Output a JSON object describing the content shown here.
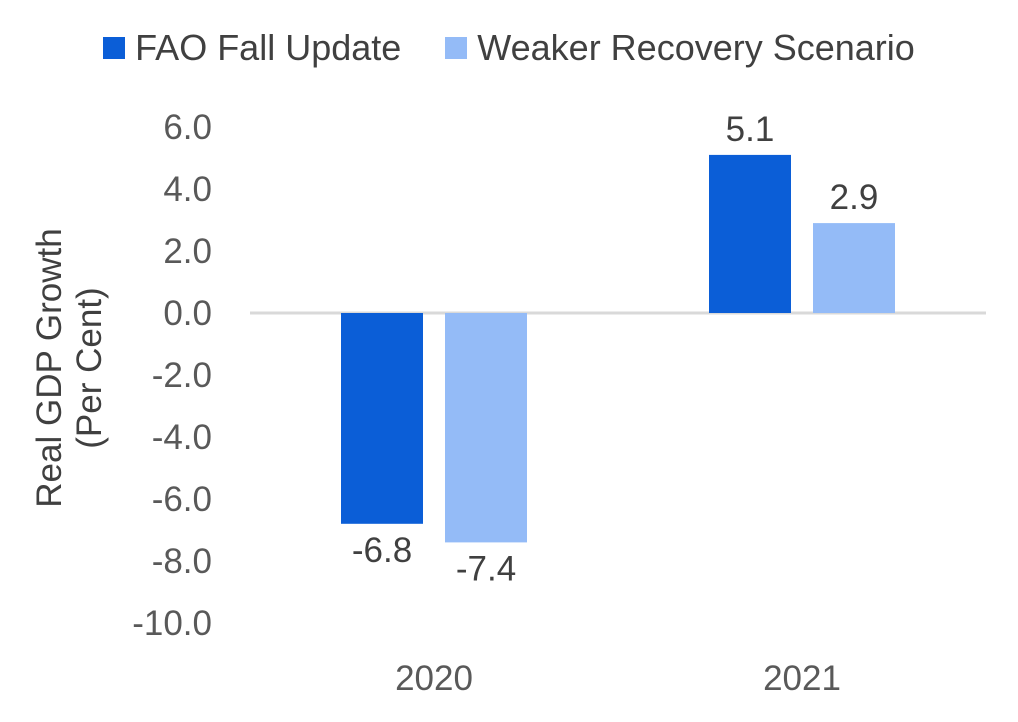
{
  "chart_data": {
    "type": "bar",
    "categories": [
      "2020",
      "2021"
    ],
    "series": [
      {
        "name": "FAO Fall Update",
        "values": [
          -6.8,
          5.1
        ],
        "color": "#0B5ED7"
      },
      {
        "name": "Weaker Recovery Scenario",
        "values": [
          -7.4,
          2.9
        ],
        "color": "#94BBF7"
      }
    ],
    "data_labels": [
      [
        "-6.8",
        "5.1"
      ],
      [
        "-7.4",
        "2.9"
      ]
    ],
    "ylabel_line1": "Real GDP Growth",
    "ylabel_line2": "(Per Cent)",
    "ylim": [
      -10.0,
      6.0
    ],
    "yticks": [
      6.0,
      4.0,
      2.0,
      0.0,
      -2.0,
      -4.0,
      -6.0,
      -8.0,
      -10.0
    ],
    "ytick_labels": [
      "6.0",
      "4.0",
      "2.0",
      "0.0",
      "-2.0",
      "-4.0",
      "-6.0",
      "-8.0",
      "-10.0"
    ],
    "grid": false,
    "legend_position": "top"
  }
}
